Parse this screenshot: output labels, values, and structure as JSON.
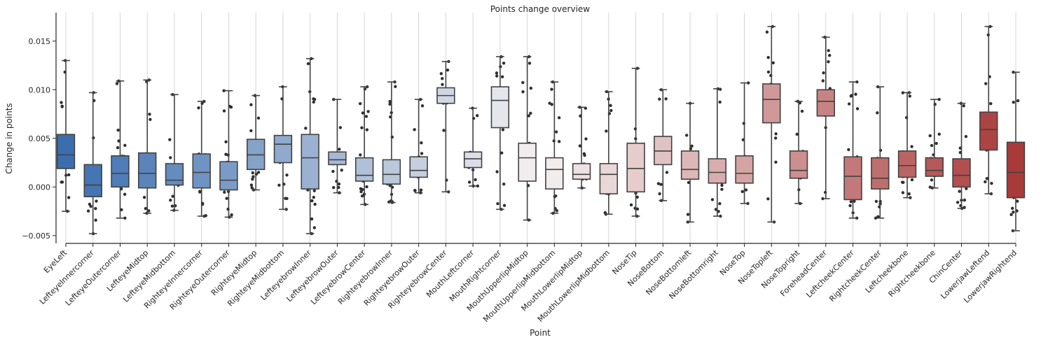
{
  "chart_data": {
    "type": "box",
    "title": "Points change overview",
    "xlabel": "Point",
    "ylabel": "Change in points",
    "ylim": [
      -0.0058,
      0.0175
    ],
    "yticks": [
      -0.005,
      0.0,
      0.005,
      0.01,
      0.015
    ],
    "ytick_labels": [
      "−0.005",
      "0.000",
      "0.005",
      "0.010",
      "0.015"
    ],
    "grid": "vertical",
    "overlay": "strip points",
    "palette": [
      "#3a6eaf",
      "#f5f1f1",
      "#a93a3a"
    ],
    "categories": [
      "EyeLeft",
      "LefteyeInnercorner",
      "LefteyeOutercorner",
      "LefteyeMidtop",
      "LefteyeMidbottom",
      "RighteyeInnercorner",
      "RighteyeOutercorner",
      "RighteyeMidtop",
      "RighteyeMidbottom",
      "LefteyebrowInner",
      "LefteyebrowOuter",
      "LefteyebrowCenter",
      "RighteyebrowInner",
      "RighteyebrowOuter",
      "RighteyebrowCenter",
      "MouthLeftcorner",
      "MouthRightcorner",
      "MouthUpperlipMidtop",
      "MouthUpperlipMidbottom",
      "MouthLowerlipMidtop",
      "MouthLowerlipMidbottom",
      "NoseTip",
      "NoseBottom",
      "NoseBottomleft",
      "NoseBottomright",
      "NoseTop",
      "NoseTopleft",
      "NoseTopright",
      "ForeheadCenter",
      "LeftcheekCenter",
      "RightcheekCenter",
      "Leftcheekbone",
      "Rightcheekbone",
      "ChinCenter",
      "LowerjawLeftend",
      "LowerjawRightend"
    ],
    "boxes": [
      {
        "min": -0.0025,
        "q1": 0.0019,
        "median": 0.0033,
        "q3": 0.0054,
        "max": 0.013
      },
      {
        "min": -0.0048,
        "q1": -0.001,
        "median": 0.0002,
        "q3": 0.0023,
        "max": 0.0097
      },
      {
        "min": -0.0032,
        "q1": 0.0,
        "median": 0.0014,
        "q3": 0.0032,
        "max": 0.0109
      },
      {
        "min": -0.0027,
        "q1": -0.0001,
        "median": 0.0014,
        "q3": 0.0035,
        "max": 0.011
      },
      {
        "min": -0.0024,
        "q1": 0.0002,
        "median": 0.0007,
        "q3": 0.0024,
        "max": 0.0095
      },
      {
        "min": -0.003,
        "q1": -0.0001,
        "median": 0.0015,
        "q3": 0.0034,
        "max": 0.0088
      },
      {
        "min": -0.0031,
        "q1": -0.0003,
        "median": 0.0007,
        "q3": 0.0026,
        "max": 0.0099
      },
      {
        "min": -0.0003,
        "q1": 0.0018,
        "median": 0.0033,
        "q3": 0.0049,
        "max": 0.0094
      },
      {
        "min": -0.0023,
        "q1": 0.0025,
        "median": 0.0044,
        "q3": 0.0053,
        "max": 0.0103
      },
      {
        "min": -0.0048,
        "q1": -0.0002,
        "median": 0.003,
        "q3": 0.0054,
        "max": 0.0132
      },
      {
        "min": -0.0006,
        "q1": 0.0023,
        "median": 0.0028,
        "q3": 0.0036,
        "max": 0.009
      },
      {
        "min": -0.0018,
        "q1": 0.0006,
        "median": 0.0012,
        "q3": 0.003,
        "max": 0.0103
      },
      {
        "min": -0.0016,
        "q1": 0.0003,
        "median": 0.0013,
        "q3": 0.0028,
        "max": 0.0108
      },
      {
        "min": -0.0006,
        "q1": 0.001,
        "median": 0.0017,
        "q3": 0.0031,
        "max": 0.009
      },
      {
        "min": -0.0005,
        "q1": 0.0086,
        "median": 0.0094,
        "q3": 0.0102,
        "max": 0.0129
      },
      {
        "min": 0.0001,
        "q1": 0.002,
        "median": 0.0029,
        "q3": 0.0036,
        "max": 0.0081
      },
      {
        "min": -0.0023,
        "q1": 0.0061,
        "median": 0.0089,
        "q3": 0.0103,
        "max": 0.0134
      },
      {
        "min": -0.0034,
        "q1": 0.0006,
        "median": 0.003,
        "q3": 0.0045,
        "max": 0.0134
      },
      {
        "min": -0.0027,
        "q1": -0.0002,
        "median": 0.0018,
        "q3": 0.003,
        "max": 0.0108
      },
      {
        "min": -0.0001,
        "q1": 0.0008,
        "median": 0.0013,
        "q3": 0.0024,
        "max": 0.0082
      },
      {
        "min": -0.0028,
        "q1": -0.0007,
        "median": 0.0013,
        "q3": 0.0024,
        "max": 0.0098
      },
      {
        "min": -0.003,
        "q1": -0.0005,
        "median": 0.0019,
        "q3": 0.0045,
        "max": 0.0122
      },
      {
        "min": -0.0014,
        "q1": 0.0023,
        "median": 0.0037,
        "q3": 0.0052,
        "max": 0.01
      },
      {
        "min": -0.0036,
        "q1": 0.0008,
        "median": 0.0018,
        "q3": 0.0037,
        "max": 0.0086
      },
      {
        "min": -0.003,
        "q1": 0.0004,
        "median": 0.0015,
        "q3": 0.0029,
        "max": 0.0101
      },
      {
        "min": -0.0017,
        "q1": 0.0004,
        "median": 0.0014,
        "q3": 0.0032,
        "max": 0.0107
      },
      {
        "min": -0.0036,
        "q1": 0.0066,
        "median": 0.009,
        "q3": 0.0106,
        "max": 0.0165
      },
      {
        "min": -0.0017,
        "q1": 0.0009,
        "median": 0.0017,
        "q3": 0.0037,
        "max": 0.0088
      },
      {
        "min": -0.0012,
        "q1": 0.0073,
        "median": 0.0088,
        "q3": 0.01,
        "max": 0.0154
      },
      {
        "min": -0.0032,
        "q1": -0.0013,
        "median": 0.0011,
        "q3": 0.0031,
        "max": 0.0108
      },
      {
        "min": -0.0032,
        "q1": -0.0002,
        "median": 0.0009,
        "q3": 0.003,
        "max": 0.0103
      },
      {
        "min": -0.0011,
        "q1": 0.001,
        "median": 0.0022,
        "q3": 0.0037,
        "max": 0.0097
      },
      {
        "min": -0.0001,
        "q1": 0.0011,
        "median": 0.0017,
        "q3": 0.003,
        "max": 0.009
      },
      {
        "min": -0.0022,
        "q1": 0.0,
        "median": 0.0012,
        "q3": 0.0029,
        "max": 0.0086
      },
      {
        "min": -0.0007,
        "q1": 0.0038,
        "median": 0.0059,
        "q3": 0.0077,
        "max": 0.0165
      },
      {
        "min": -0.0045,
        "q1": -0.0011,
        "median": 0.0015,
        "q3": 0.0046,
        "max": 0.0118
      }
    ]
  }
}
